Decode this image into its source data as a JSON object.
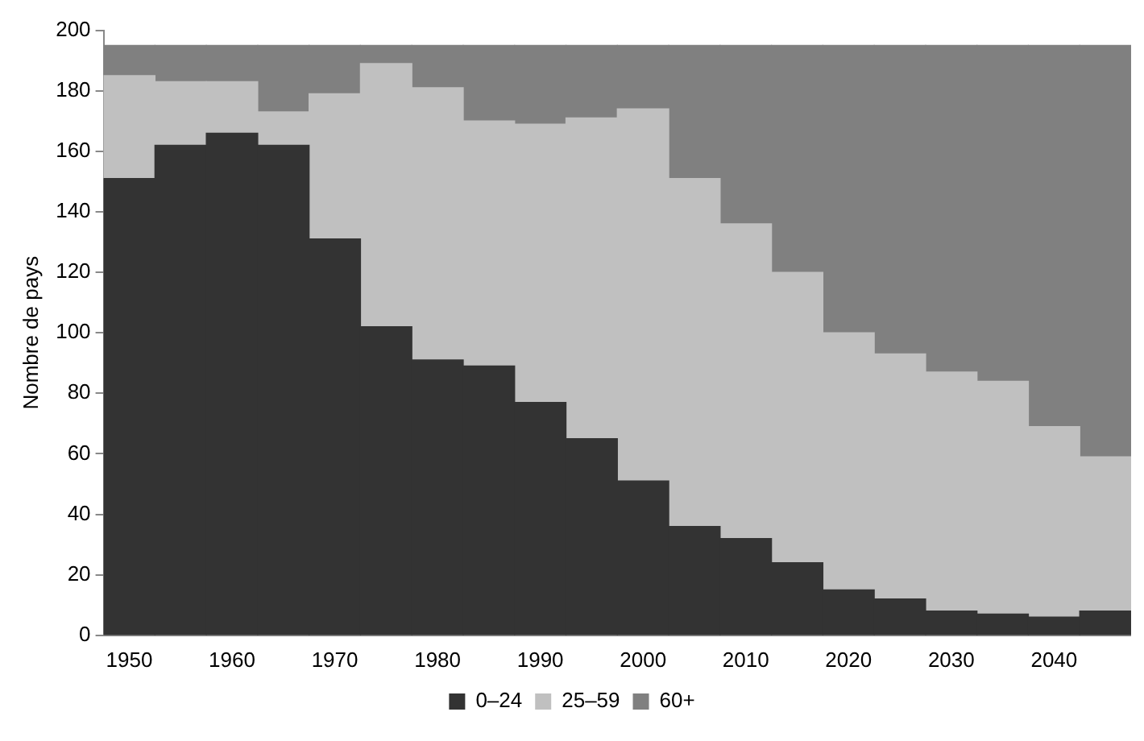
{
  "chart_data": {
    "type": "bar",
    "stacked": true,
    "ylabel": "Nombre de pays",
    "categories": [
      "1950",
      null,
      "1960",
      null,
      "1970",
      null,
      "1980",
      null,
      "1990",
      null,
      "2000",
      null,
      "2010",
      null,
      "2020",
      null,
      "2030",
      null,
      "2040",
      null
    ],
    "series": [
      {
        "name": "0–24",
        "color": "#333333",
        "values": [
          151,
          162,
          166,
          162,
          131,
          102,
          91,
          89,
          77,
          65,
          51,
          36,
          32,
          24,
          15,
          12,
          8,
          7,
          6,
          8
        ]
      },
      {
        "name": "25–59",
        "color": "#c0c0c0",
        "values": [
          34,
          21,
          17,
          11,
          48,
          87,
          90,
          81,
          92,
          106,
          123,
          115,
          104,
          96,
          85,
          81,
          79,
          77,
          63,
          51
        ]
      },
      {
        "name": "60+",
        "color": "#808080",
        "values": [
          10,
          12,
          12,
          22,
          16,
          6,
          14,
          25,
          26,
          24,
          21,
          44,
          59,
          75,
          95,
          102,
          108,
          111,
          126,
          136
        ]
      }
    ],
    "ylim": [
      0,
      200
    ],
    "yticks": [
      0,
      20,
      40,
      60,
      80,
      100,
      120,
      140,
      160,
      180,
      200
    ],
    "grid": false,
    "legend": "bottom"
  }
}
